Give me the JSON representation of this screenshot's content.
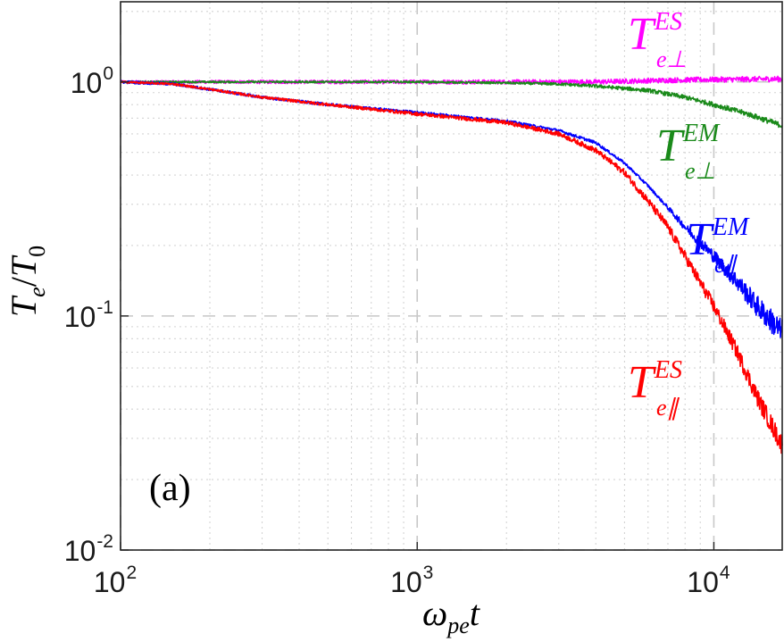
{
  "chart_data": {
    "type": "line",
    "xscale": "log",
    "yscale": "log",
    "xlim": [
      100,
      17000
    ],
    "ylim": [
      0.01,
      2.2
    ],
    "xticks": [
      {
        "value": 100,
        "base": "10",
        "exp": "2"
      },
      {
        "value": 1000,
        "base": "10",
        "exp": "3"
      },
      {
        "value": 10000,
        "base": "10",
        "exp": "4"
      }
    ],
    "yticks": [
      {
        "value": 0.01,
        "base": "10",
        "exp": "-2"
      },
      {
        "value": 0.1,
        "base": "10",
        "exp": "-1"
      },
      {
        "value": 1,
        "base": "10",
        "exp": "0"
      }
    ],
    "xlabel": {
      "main": "ω",
      "sub": "pe",
      "tail": "t"
    },
    "ylabel": {
      "a": "T",
      "a_sub": "e",
      "slash": "/",
      "b": "T",
      "b_sub": "0"
    },
    "grid": true,
    "panel_label": "(a)",
    "series": [
      {
        "name": "T_e⊥^ES",
        "color": "#ff00ff",
        "label": {
          "main": "T",
          "sup": "ES",
          "sub": "e⊥"
        },
        "x": [
          100,
          200,
          400,
          1000,
          2000,
          4000,
          8000,
          17000
        ],
        "y": [
          1.0,
          1.0,
          1.0,
          1.0,
          1.0,
          1.0,
          1.02,
          1.03
        ]
      },
      {
        "name": "T_e⊥^EM",
        "color": "#1a8a1a",
        "label": {
          "main": "T",
          "sup": "EM",
          "sub": "e⊥"
        },
        "x": [
          100,
          300,
          1000,
          2000,
          3000,
          4000,
          6000,
          8000,
          10000,
          13000,
          17000
        ],
        "y": [
          1.0,
          1.0,
          1.0,
          0.99,
          0.98,
          0.96,
          0.92,
          0.86,
          0.8,
          0.73,
          0.65
        ]
      },
      {
        "name": "T_e∥^EM",
        "color": "#0000ff",
        "label": {
          "main": "T",
          "sup": "EM",
          "sub": "e∥"
        },
        "x": [
          100,
          150,
          200,
          300,
          500,
          1000,
          2000,
          3000,
          4000,
          5000,
          6000,
          7000,
          8000,
          10000,
          12000,
          14000,
          17000
        ],
        "y": [
          1.0,
          0.98,
          0.93,
          0.86,
          0.8,
          0.74,
          0.68,
          0.62,
          0.55,
          0.45,
          0.36,
          0.29,
          0.24,
          0.18,
          0.14,
          0.11,
          0.085
        ]
      },
      {
        "name": "T_e∥^ES",
        "color": "#ff0000",
        "label": {
          "main": "T",
          "sup": "ES",
          "sub": "e∥"
        },
        "x": [
          100,
          150,
          200,
          300,
          500,
          1000,
          2000,
          3000,
          4000,
          5000,
          6000,
          7000,
          8000,
          10000,
          12000,
          14000,
          17000
        ],
        "y": [
          1.0,
          0.98,
          0.93,
          0.86,
          0.8,
          0.73,
          0.67,
          0.6,
          0.51,
          0.41,
          0.31,
          0.24,
          0.18,
          0.11,
          0.07,
          0.045,
          0.028
        ]
      }
    ]
  }
}
